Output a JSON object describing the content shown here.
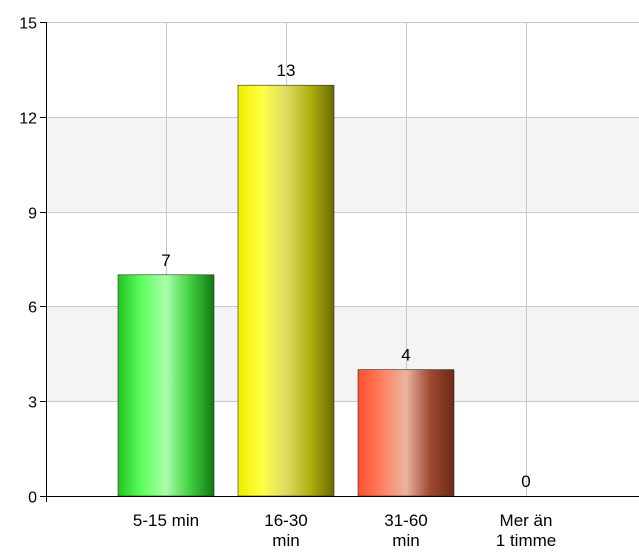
{
  "chart_data": {
    "type": "bar",
    "title": "",
    "xlabel": "",
    "ylabel": "",
    "categories": [
      "5-15 min",
      "16-30 min",
      "31-60 min",
      "Mer än 1 timme"
    ],
    "category_label_lines": [
      [
        "5-15 min"
      ],
      [
        "16-30",
        "min"
      ],
      [
        "31-60",
        "min"
      ],
      [
        "Mer än",
        "1 timme"
      ]
    ],
    "values": [
      7,
      13,
      4,
      0
    ],
    "value_labels": [
      "7",
      "13",
      "4",
      "0"
    ],
    "ylim": [
      0,
      15
    ],
    "yticks": [
      0,
      3,
      6,
      9,
      12,
      15
    ],
    "ytick_labels": [
      "0",
      "3",
      "6",
      "9",
      "12",
      "15"
    ],
    "grid": true,
    "alternating_bands": true,
    "band_color": "#f4f4f4",
    "grid_color": "#c8c8c8",
    "axis_color": "#000000",
    "bar_gradients": [
      [
        "#22c522",
        "#5eff5e",
        "#aaffaa",
        "#40d040",
        "#117711"
      ],
      [
        "#eeee00",
        "#ffff44",
        "#dddd66",
        "#b0b010",
        "#6a6a00"
      ],
      [
        "#ff5030",
        "#ff8060",
        "#eab4a0",
        "#a04830",
        "#6a2a18"
      ],
      [
        "#cccccc",
        "#eeeeee",
        "#dddddd",
        "#aaaaaa",
        "#888888"
      ]
    ]
  }
}
